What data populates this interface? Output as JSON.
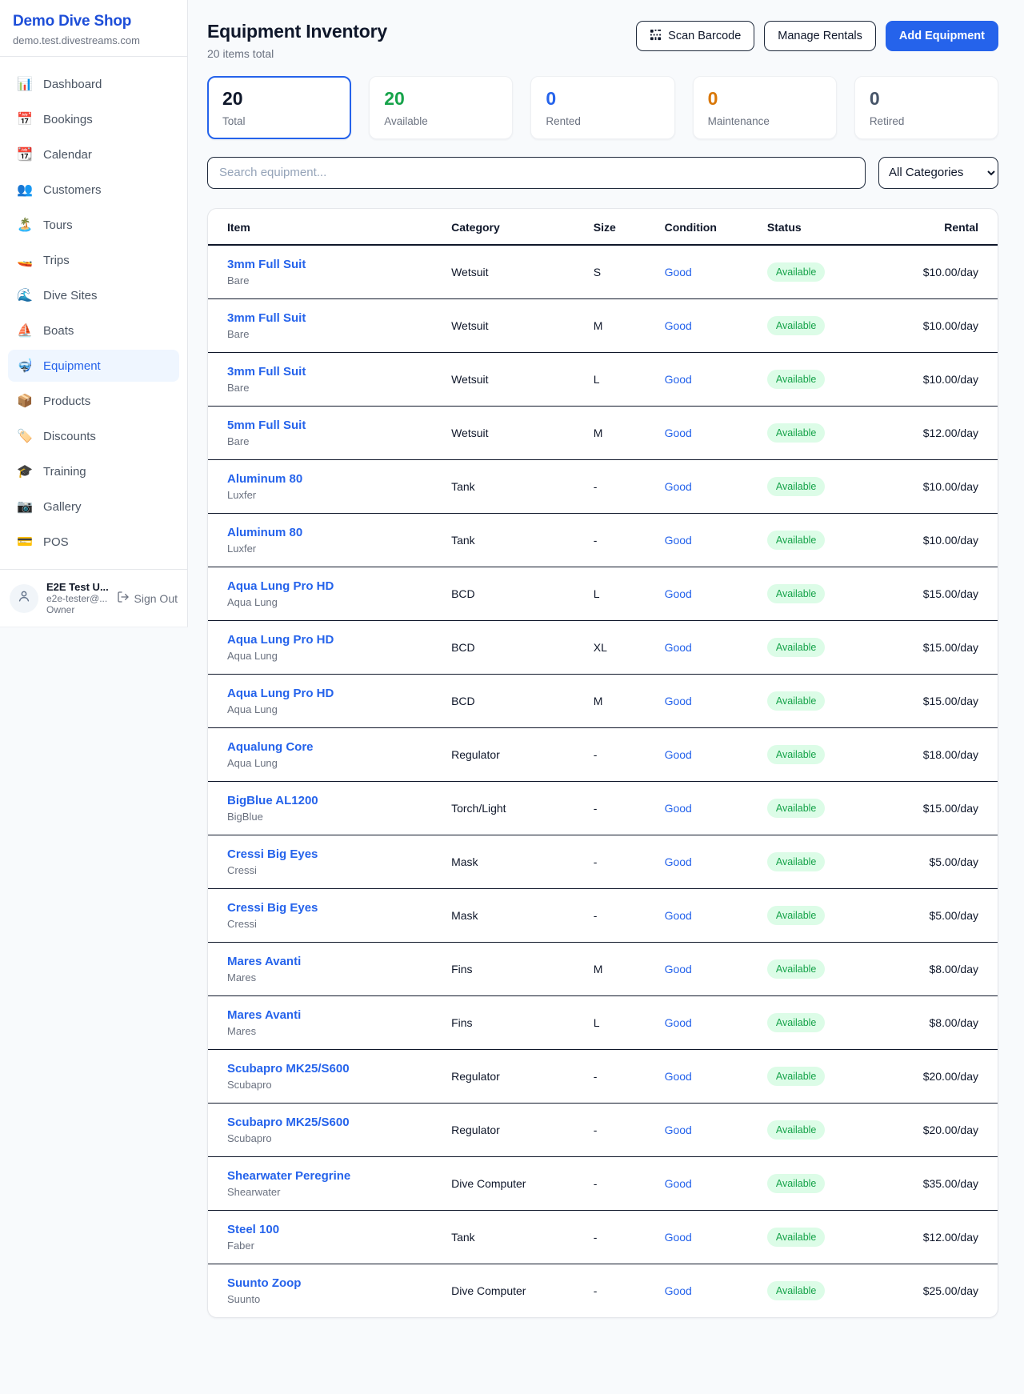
{
  "sidebar": {
    "brand": {
      "title": "Demo Dive Shop",
      "subtitle": "demo.test.divestreams.com"
    },
    "items": [
      {
        "id": "dashboard",
        "label": "Dashboard",
        "icon": "📊",
        "icon_name": "bar-chart-icon",
        "active": false
      },
      {
        "id": "bookings",
        "label": "Bookings",
        "icon": "📅",
        "icon_name": "calendar-date-icon",
        "active": false
      },
      {
        "id": "calendar",
        "label": "Calendar",
        "icon": "📆",
        "icon_name": "calendar-icon",
        "active": false
      },
      {
        "id": "customers",
        "label": "Customers",
        "icon": "👥",
        "icon_name": "people-icon",
        "active": false
      },
      {
        "id": "tours",
        "label": "Tours",
        "icon": "🏝️",
        "icon_name": "island-icon",
        "active": false
      },
      {
        "id": "trips",
        "label": "Trips",
        "icon": "🚤",
        "icon_name": "speedboat-icon",
        "active": false
      },
      {
        "id": "dive-sites",
        "label": "Dive Sites",
        "icon": "🌊",
        "icon_name": "wave-icon",
        "active": false
      },
      {
        "id": "boats",
        "label": "Boats",
        "icon": "⛵",
        "icon_name": "sailboat-icon",
        "active": false
      },
      {
        "id": "equipment",
        "label": "Equipment",
        "icon": "🤿",
        "icon_name": "dive-mask-icon",
        "active": true
      },
      {
        "id": "products",
        "label": "Products",
        "icon": "📦",
        "icon_name": "package-icon",
        "active": false
      },
      {
        "id": "discounts",
        "label": "Discounts",
        "icon": "🏷️",
        "icon_name": "tag-icon",
        "active": false
      },
      {
        "id": "training",
        "label": "Training",
        "icon": "🎓",
        "icon_name": "graduation-cap-icon",
        "active": false
      },
      {
        "id": "gallery",
        "label": "Gallery",
        "icon": "📷",
        "icon_name": "camera-icon",
        "active": false
      },
      {
        "id": "pos",
        "label": "POS",
        "icon": "💳",
        "icon_name": "credit-card-icon",
        "active": false
      }
    ],
    "user": {
      "name": "E2E Test U...",
      "email": "e2e-tester@...",
      "role": "Owner",
      "sign_out_label": "Sign Out"
    }
  },
  "header": {
    "title": "Equipment Inventory",
    "subtitle": "20 items total",
    "buttons": {
      "scan_barcode": "Scan Barcode",
      "manage_rentals": "Manage Rentals",
      "add_equipment": "Add Equipment"
    }
  },
  "stats": [
    {
      "id": "total",
      "value": "20",
      "label": "Total",
      "color": "#0f172a",
      "active": true
    },
    {
      "id": "available",
      "value": "20",
      "label": "Available",
      "color": "#16a34a",
      "active": false
    },
    {
      "id": "rented",
      "value": "0",
      "label": "Rented",
      "color": "#2563eb",
      "active": false
    },
    {
      "id": "maintenance",
      "value": "0",
      "label": "Maintenance",
      "color": "#d97706",
      "active": false
    },
    {
      "id": "retired",
      "value": "0",
      "label": "Retired",
      "color": "#475569",
      "active": false
    }
  ],
  "search": {
    "placeholder": "Search equipment...",
    "category_filter": "All Categories"
  },
  "table": {
    "columns": {
      "item": "Item",
      "category": "Category",
      "size": "Size",
      "condition": "Condition",
      "status": "Status",
      "rental": "Rental"
    },
    "rows": [
      {
        "name": "3mm Full Suit",
        "brand": "Bare",
        "category": "Wetsuit",
        "size": "S",
        "condition": "Good",
        "status": "Available",
        "rental": "$10.00/day"
      },
      {
        "name": "3mm Full Suit",
        "brand": "Bare",
        "category": "Wetsuit",
        "size": "M",
        "condition": "Good",
        "status": "Available",
        "rental": "$10.00/day"
      },
      {
        "name": "3mm Full Suit",
        "brand": "Bare",
        "category": "Wetsuit",
        "size": "L",
        "condition": "Good",
        "status": "Available",
        "rental": "$10.00/day"
      },
      {
        "name": "5mm Full Suit",
        "brand": "Bare",
        "category": "Wetsuit",
        "size": "M",
        "condition": "Good",
        "status": "Available",
        "rental": "$12.00/day"
      },
      {
        "name": "Aluminum 80",
        "brand": "Luxfer",
        "category": "Tank",
        "size": "-",
        "condition": "Good",
        "status": "Available",
        "rental": "$10.00/day"
      },
      {
        "name": "Aluminum 80",
        "brand": "Luxfer",
        "category": "Tank",
        "size": "-",
        "condition": "Good",
        "status": "Available",
        "rental": "$10.00/day"
      },
      {
        "name": "Aqua Lung Pro HD",
        "brand": "Aqua Lung",
        "category": "BCD",
        "size": "L",
        "condition": "Good",
        "status": "Available",
        "rental": "$15.00/day"
      },
      {
        "name": "Aqua Lung Pro HD",
        "brand": "Aqua Lung",
        "category": "BCD",
        "size": "XL",
        "condition": "Good",
        "status": "Available",
        "rental": "$15.00/day"
      },
      {
        "name": "Aqua Lung Pro HD",
        "brand": "Aqua Lung",
        "category": "BCD",
        "size": "M",
        "condition": "Good",
        "status": "Available",
        "rental": "$15.00/day"
      },
      {
        "name": "Aqualung Core",
        "brand": "Aqua Lung",
        "category": "Regulator",
        "size": "-",
        "condition": "Good",
        "status": "Available",
        "rental": "$18.00/day"
      },
      {
        "name": "BigBlue AL1200",
        "brand": "BigBlue",
        "category": "Torch/Light",
        "size": "-",
        "condition": "Good",
        "status": "Available",
        "rental": "$15.00/day"
      },
      {
        "name": "Cressi Big Eyes",
        "brand": "Cressi",
        "category": "Mask",
        "size": "-",
        "condition": "Good",
        "status": "Available",
        "rental": "$5.00/day"
      },
      {
        "name": "Cressi Big Eyes",
        "brand": "Cressi",
        "category": "Mask",
        "size": "-",
        "condition": "Good",
        "status": "Available",
        "rental": "$5.00/day"
      },
      {
        "name": "Mares Avanti",
        "brand": "Mares",
        "category": "Fins",
        "size": "M",
        "condition": "Good",
        "status": "Available",
        "rental": "$8.00/day"
      },
      {
        "name": "Mares Avanti",
        "brand": "Mares",
        "category": "Fins",
        "size": "L",
        "condition": "Good",
        "status": "Available",
        "rental": "$8.00/day"
      },
      {
        "name": "Scubapro MK25/S600",
        "brand": "Scubapro",
        "category": "Regulator",
        "size": "-",
        "condition": "Good",
        "status": "Available",
        "rental": "$20.00/day"
      },
      {
        "name": "Scubapro MK25/S600",
        "brand": "Scubapro",
        "category": "Regulator",
        "size": "-",
        "condition": "Good",
        "status": "Available",
        "rental": "$20.00/day"
      },
      {
        "name": "Shearwater Peregrine",
        "brand": "Shearwater",
        "category": "Dive Computer",
        "size": "-",
        "condition": "Good",
        "status": "Available",
        "rental": "$35.00/day"
      },
      {
        "name": "Steel 100",
        "brand": "Faber",
        "category": "Tank",
        "size": "-",
        "condition": "Good",
        "status": "Available",
        "rental": "$12.00/day"
      },
      {
        "name": "Suunto Zoop",
        "brand": "Suunto",
        "category": "Dive Computer",
        "size": "-",
        "condition": "Good",
        "status": "Available",
        "rental": "$25.00/day"
      }
    ]
  },
  "colors": {
    "accent_blue": "#2563eb",
    "brand_blue": "#1d4ed8",
    "success_green": "#16a34a",
    "badge_green_bg": "#dcfce7",
    "warning_orange": "#d97706",
    "muted_gray": "#6b7280",
    "dark_navy": "#0f172a"
  }
}
